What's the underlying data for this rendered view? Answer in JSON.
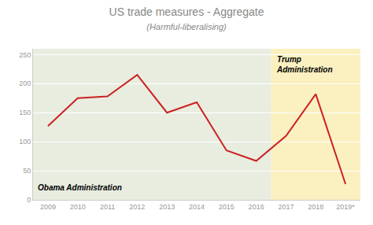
{
  "chart_data": {
    "type": "line",
    "title": "US trade measures - Aggregate",
    "subtitle": "(Harmful-liberalising)",
    "x": [
      2009,
      2010,
      2011,
      2012,
      2013,
      2014,
      2015,
      2016,
      2017,
      2018,
      2019
    ],
    "values": [
      127,
      175,
      178,
      215,
      150,
      168,
      85,
      67,
      110,
      182,
      27
    ],
    "color": "#cc2222",
    "xlim": [
      2008.5,
      2019.5
    ],
    "xticks": [
      2009,
      2010,
      2011,
      2012,
      2013,
      2014,
      2015,
      2016,
      2017,
      2018,
      {
        "value": 2019,
        "label": "2019*"
      }
    ],
    "ylim": [
      0,
      260
    ],
    "yticks": [
      0,
      50,
      100,
      150,
      200,
      250
    ],
    "grid": true,
    "shaded": [
      {
        "label": "Obama Administration",
        "x0": 2008.5,
        "x1": 2016.5,
        "color": "#e8ede0"
      },
      {
        "label": "Trump\nAdministration",
        "x0": 2016.5,
        "x1": 2019.5,
        "color": "#faf0c0"
      }
    ]
  }
}
